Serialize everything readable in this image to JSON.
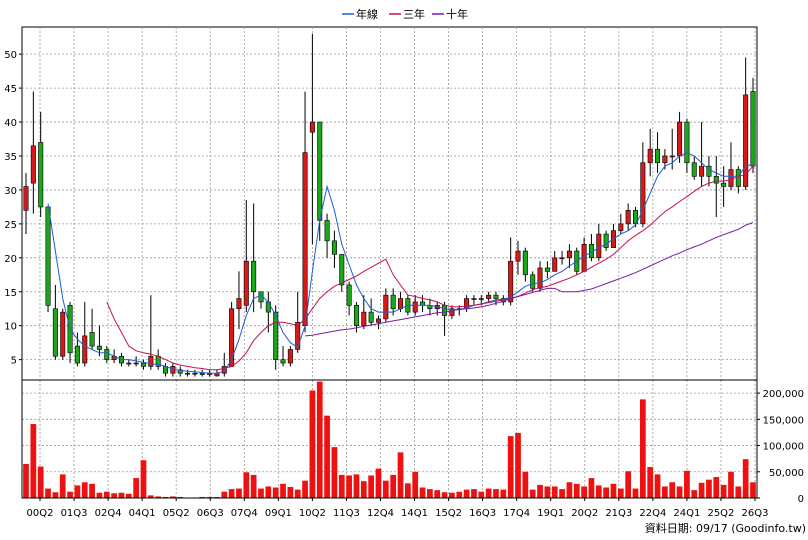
{
  "legend": [
    {
      "label": "年線",
      "color": "#1f5fd0"
    },
    {
      "label": "三年",
      "color": "#c8104f"
    },
    {
      "label": "十年",
      "color": "#7a1aa8"
    }
  ],
  "footer": "資料日期: 09/17  (Goodinfo.tw)",
  "colors": {
    "up": "#d61a1a",
    "down": "#1aa81a",
    "volume": "#ee1111",
    "grid": "#999999",
    "axis": "#000000"
  },
  "chart_data": [
    {
      "type": "candlestick",
      "title": "",
      "ylim": [
        2,
        54
      ],
      "yticks": [
        5,
        10,
        15,
        20,
        25,
        30,
        35,
        40,
        45,
        50
      ],
      "x_ticks": [
        "00Q2",
        "01Q3",
        "02Q4",
        "04Q1",
        "05Q2",
        "06Q3",
        "07Q4",
        "09Q1",
        "10Q2",
        "11Q3",
        "12Q4",
        "14Q1",
        "15Q2",
        "16Q3",
        "17Q4",
        "19Q1",
        "20Q2",
        "21Q3",
        "22Q4",
        "24Q1",
        "25Q2",
        "26Q3"
      ],
      "candles": [
        [
          27.0,
          30.5,
          32.5,
          23.5
        ],
        [
          31.0,
          36.5,
          44.5,
          26.5
        ],
        [
          37.0,
          27.5,
          41.5,
          26.0
        ],
        [
          27.5,
          13.0,
          27.5,
          12.0
        ],
        [
          12.5,
          5.5,
          16.0,
          5.0
        ],
        [
          5.5,
          12.0,
          12.5,
          5.0
        ],
        [
          13.0,
          6.0,
          13.5,
          4.5
        ],
        [
          7.0,
          4.5,
          9.0,
          4.0
        ],
        [
          4.5,
          8.5,
          13.5,
          4.0
        ],
        [
          9.0,
          7.0,
          12.5,
          6.5
        ],
        [
          7.0,
          6.5,
          10.0,
          5.5
        ],
        [
          6.5,
          5.0,
          7.0,
          4.5
        ],
        [
          5.0,
          5.5,
          6.5,
          4.5
        ],
        [
          5.5,
          4.5,
          6.0,
          4.0
        ],
        [
          4.5,
          4.5,
          5.0,
          4.0
        ],
        [
          4.5,
          4.5,
          5.5,
          4.0
        ],
        [
          4.5,
          4.0,
          5.0,
          3.5
        ],
        [
          4.0,
          5.5,
          14.5,
          3.5
        ],
        [
          5.5,
          4.0,
          6.5,
          3.5
        ],
        [
          4.0,
          3.0,
          4.5,
          2.5
        ],
        [
          3.0,
          4.0,
          4.5,
          2.5
        ],
        [
          3.5,
          3.0,
          4.0,
          2.5
        ],
        [
          3.0,
          3.0,
          3.5,
          2.5
        ],
        [
          3.0,
          3.0,
          3.5,
          2.5
        ],
        [
          3.0,
          2.8,
          3.5,
          2.5
        ],
        [
          2.8,
          3.0,
          3.5,
          2.5
        ],
        [
          2.6,
          3.0,
          3.5,
          2.5
        ],
        [
          3.0,
          4.0,
          6.0,
          2.5
        ],
        [
          4.0,
          12.5,
          13.5,
          4.0
        ],
        [
          12.5,
          14.0,
          18.0,
          9.5
        ],
        [
          13.0,
          19.5,
          28.5,
          12.0
        ],
        [
          19.5,
          15.0,
          28.0,
          12.0
        ],
        [
          15.0,
          13.5,
          15.0,
          12.5
        ],
        [
          13.5,
          12.0,
          15.0,
          9.0
        ],
        [
          12.0,
          5.0,
          13.0,
          3.5
        ],
        [
          5.0,
          4.5,
          7.0,
          4.0
        ],
        [
          4.5,
          6.5,
          7.0,
          4.0
        ],
        [
          6.5,
          10.5,
          15.0,
          6.0
        ],
        [
          10.0,
          35.5,
          44.5,
          9.0
        ],
        [
          38.5,
          40.0,
          53.0,
          22.0
        ],
        [
          40.0,
          25.5,
          40.0,
          22.5
        ],
        [
          25.5,
          22.5,
          26.5,
          20.0
        ],
        [
          22.5,
          20.5,
          24.0,
          18.5
        ],
        [
          20.5,
          16.0,
          20.5,
          15.0
        ],
        [
          16.0,
          13.0,
          16.5,
          11.5
        ],
        [
          13.0,
          10.0,
          13.5,
          9.0
        ],
        [
          10.0,
          12.0,
          14.5,
          9.5
        ],
        [
          12.0,
          10.5,
          14.0,
          10.0
        ],
        [
          10.5,
          11.0,
          11.5,
          9.5
        ],
        [
          11.0,
          14.5,
          15.5,
          10.5
        ],
        [
          14.5,
          12.5,
          15.5,
          11.5
        ],
        [
          12.5,
          14.0,
          15.0,
          12.0
        ],
        [
          14.0,
          12.0,
          14.5,
          11.5
        ],
        [
          12.0,
          13.5,
          14.5,
          11.5
        ],
        [
          13.5,
          13.0,
          14.5,
          12.0
        ],
        [
          13.0,
          12.5,
          14.0,
          11.5
        ],
        [
          12.5,
          13.0,
          13.5,
          11.5
        ],
        [
          13.0,
          11.5,
          13.5,
          8.5
        ],
        [
          11.5,
          12.5,
          13.0,
          11.0
        ],
        [
          12.5,
          12.5,
          13.0,
          11.5
        ],
        [
          12.5,
          14.0,
          14.5,
          12.0
        ],
        [
          14.0,
          14.0,
          14.5,
          13.0
        ],
        [
          14.0,
          14.0,
          14.5,
          13.0
        ],
        [
          14.0,
          14.5,
          15.0,
          13.5
        ],
        [
          14.5,
          14.0,
          15.0,
          13.0
        ],
        [
          14.0,
          13.5,
          14.5,
          13.0
        ],
        [
          13.5,
          19.5,
          23.0,
          13.0
        ],
        [
          19.5,
          21.0,
          22.5,
          17.5
        ],
        [
          21.0,
          17.5,
          21.5,
          16.5
        ],
        [
          17.5,
          15.5,
          18.0,
          15.0
        ],
        [
          15.5,
          18.5,
          19.5,
          15.0
        ],
        [
          18.5,
          18.0,
          19.5,
          17.0
        ],
        [
          18.0,
          20.0,
          21.0,
          18.0
        ],
        [
          20.0,
          20.0,
          21.0,
          19.0
        ],
        [
          20.0,
          21.0,
          22.0,
          18.5
        ],
        [
          21.0,
          18.0,
          21.5,
          17.5
        ],
        [
          18.0,
          22.0,
          23.0,
          18.0
        ],
        [
          22.0,
          20.0,
          23.5,
          19.5
        ],
        [
          20.0,
          23.5,
          25.0,
          19.5
        ],
        [
          23.5,
          21.5,
          24.0,
          21.0
        ],
        [
          21.5,
          24.0,
          25.0,
          21.5
        ],
        [
          24.0,
          25.0,
          26.5,
          23.5
        ],
        [
          25.0,
          27.0,
          28.0,
          24.0
        ],
        [
          27.0,
          25.0,
          27.5,
          24.5
        ],
        [
          25.0,
          34.0,
          37.0,
          24.5
        ],
        [
          34.0,
          36.0,
          39.0,
          32.0
        ],
        [
          36.0,
          34.0,
          38.5,
          32.5
        ],
        [
          34.0,
          35.0,
          36.0,
          33.0
        ],
        [
          35.0,
          35.0,
          39.0,
          33.0
        ],
        [
          35.0,
          40.0,
          41.5,
          34.0
        ],
        [
          40.0,
          34.0,
          40.5,
          32.5
        ],
        [
          34.0,
          32.0,
          35.0,
          31.5
        ],
        [
          32.0,
          33.5,
          40.0,
          30.5
        ],
        [
          33.5,
          32.0,
          35.0,
          30.5
        ],
        [
          32.0,
          31.0,
          35.0,
          26.0
        ],
        [
          31.0,
          30.5,
          33.5,
          27.5
        ],
        [
          30.5,
          33.0,
          37.0,
          30.0
        ],
        [
          33.0,
          30.5,
          33.5,
          29.5
        ],
        [
          30.5,
          44.0,
          49.5,
          30.0
        ],
        [
          44.5,
          33.5,
          46.5,
          32.5
        ]
      ],
      "volume": {
        "ylim": [
          0,
          225000
        ],
        "yticks": [
          0,
          50000,
          100000,
          150000,
          200000
        ],
        "ytick_labels": [
          "0",
          "50,000",
          "100,000",
          "150,000",
          "200,000"
        ],
        "values": [
          65000,
          141000,
          60000,
          18000,
          11000,
          45000,
          12000,
          24000,
          30000,
          27000,
          10000,
          12000,
          9000,
          10000,
          8000,
          38000,
          72000,
          5000,
          3000,
          2000,
          3000,
          2000,
          1000,
          1000,
          2000,
          2000,
          2000,
          12000,
          17000,
          18000,
          49000,
          44000,
          18000,
          22000,
          20000,
          27000,
          21000,
          16000,
          33000,
          205000,
          222000,
          157000,
          97000,
          44000,
          43000,
          45000,
          32000,
          43000,
          56000,
          33000,
          44000,
          87000,
          28000,
          50000,
          20000,
          17000,
          15000,
          11000,
          10000,
          12000,
          16000,
          17000,
          12000,
          18000,
          17000,
          16000,
          118000,
          124000,
          50000,
          16000,
          25000,
          22000,
          22000,
          17000,
          30000,
          27000,
          22000,
          38000,
          24000,
          20000,
          27000,
          18000,
          51000,
          18000,
          188000,
          59000,
          45000,
          22000,
          30000,
          22000,
          52000,
          15000,
          29000,
          35000,
          40000,
          25000,
          50000,
          22000,
          74000,
          30000
        ]
      },
      "series": [
        {
          "name": "年線",
          "color": "#1f5fd0",
          "values": [
            null,
            null,
            null,
            28.0,
            21.0,
            14.0,
            9.5,
            8.0,
            7.0,
            6.5,
            6.0,
            6.0,
            5.5,
            5.0,
            5.0,
            4.8,
            4.6,
            4.4,
            4.3,
            4.0,
            3.6,
            3.4,
            3.3,
            3.2,
            3.1,
            3.0,
            3.0,
            3.3,
            5.0,
            8.0,
            11.5,
            14.0,
            14.5,
            13.5,
            11.5,
            9.0,
            7.5,
            6.8,
            10.0,
            18.0,
            25.5,
            30.5,
            27.0,
            22.0,
            19.0,
            16.0,
            14.0,
            12.5,
            12.0,
            12.0,
            12.0,
            12.5,
            13.0,
            13.0,
            13.0,
            13.0,
            12.8,
            12.5,
            12.3,
            12.4,
            12.6,
            13.0,
            13.2,
            13.5,
            13.8,
            13.9,
            14.2,
            15.0,
            15.8,
            16.2,
            16.3,
            16.8,
            17.5,
            18.0,
            18.8,
            19.5,
            20.3,
            20.8,
            21.5,
            22.0,
            22.8,
            23.5,
            24.0,
            24.8,
            27.0,
            29.5,
            32.0,
            33.5,
            34.0,
            35.0,
            35.5,
            35.0,
            34.0,
            33.0,
            32.5,
            32.0,
            32.0,
            32.0,
            33.5,
            33.8
          ]
        },
        {
          "name": "三年",
          "color": "#c8104f",
          "values": [
            null,
            null,
            null,
            null,
            null,
            null,
            null,
            null,
            null,
            null,
            null,
            13.5,
            11.0,
            9.0,
            7.0,
            6.3,
            6.0,
            5.8,
            5.5,
            5.0,
            4.5,
            4.2,
            4.0,
            3.8,
            3.7,
            3.5,
            3.5,
            3.7,
            4.0,
            4.8,
            6.0,
            7.8,
            9.0,
            10.0,
            10.5,
            10.5,
            10.3,
            10.0,
            11.0,
            12.5,
            14.0,
            15.0,
            15.8,
            16.3,
            16.8,
            17.3,
            18.0,
            18.6,
            19.2,
            19.8,
            17.5,
            16.0,
            14.5,
            14.3,
            14.0,
            13.8,
            13.5,
            13.0,
            12.8,
            12.8,
            12.9,
            13.0,
            13.2,
            13.4,
            13.6,
            13.8,
            14.0,
            14.3,
            14.8,
            15.3,
            15.6,
            15.8,
            16.2,
            16.6,
            17.0,
            17.5,
            18.0,
            18.6,
            19.2,
            19.8,
            20.5,
            21.5,
            22.5,
            23.3,
            24.0,
            24.8,
            25.8,
            26.8,
            27.5,
            28.3,
            29.0,
            29.8,
            30.5,
            31.0,
            31.3,
            31.3,
            31.5,
            32.0,
            32.3,
            33.5
          ]
        },
        {
          "name": "十年",
          "color": "#7a1aa8",
          "values": [
            null,
            null,
            null,
            null,
            null,
            null,
            null,
            null,
            null,
            null,
            null,
            null,
            null,
            null,
            null,
            null,
            null,
            null,
            null,
            null,
            null,
            null,
            null,
            null,
            null,
            null,
            null,
            null,
            null,
            null,
            null,
            null,
            null,
            null,
            null,
            null,
            null,
            null,
            8.5,
            8.6,
            8.8,
            9.0,
            9.2,
            9.4,
            9.5,
            9.7,
            9.9,
            10.1,
            10.3,
            10.5,
            10.7,
            10.9,
            11.1,
            11.3,
            11.5,
            11.7,
            11.9,
            12.0,
            12.2,
            12.4,
            12.5,
            12.6,
            12.8,
            13.0,
            13.3,
            13.6,
            14.0,
            14.3,
            14.6,
            14.9,
            15.2,
            15.5,
            15.5,
            15.0,
            15.0,
            15.0,
            15.2,
            15.4,
            15.8,
            16.2,
            16.6,
            17.0,
            17.4,
            17.8,
            18.3,
            18.8,
            19.3,
            19.8,
            20.3,
            20.7,
            21.2,
            21.6,
            22.0,
            22.5,
            23.0,
            23.4,
            23.8,
            24.2,
            24.8,
            25.2
          ]
        }
      ]
    }
  ]
}
